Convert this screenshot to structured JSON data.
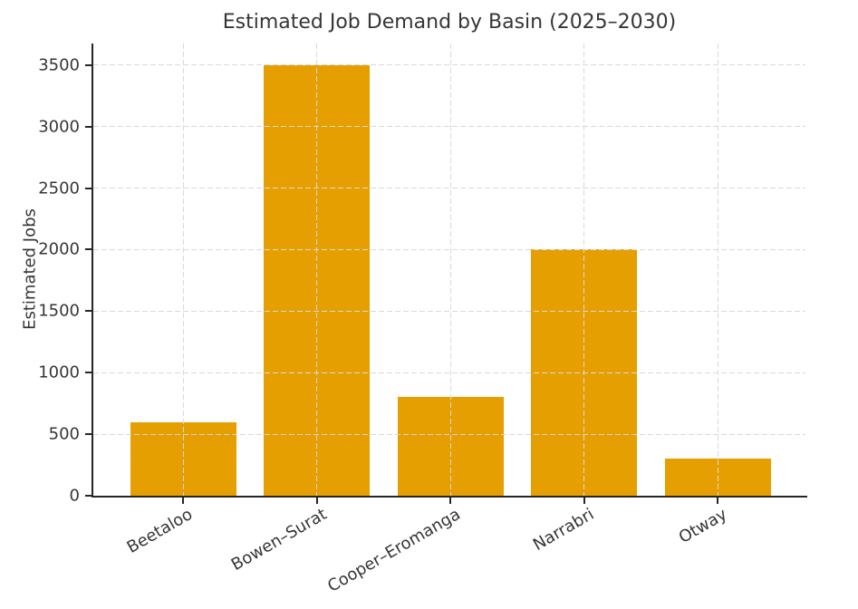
{
  "chart_data": {
    "type": "bar",
    "title": "Estimated Job Demand by Basin (2025–2030)",
    "xlabel": "",
    "ylabel": "Estimated Jobs",
    "categories": [
      "Beetaloo",
      "Bowen–Surat",
      "Cooper–Eromanga",
      "Narrabri",
      "Otway"
    ],
    "values": [
      600,
      3500,
      800,
      2000,
      300
    ],
    "yticks": [
      0,
      500,
      1000,
      1500,
      2000,
      2500,
      3000,
      3500
    ],
    "ylim": [
      0,
      3675
    ],
    "bar_color": "#E69F00",
    "grid": true,
    "grid_style": "dashed",
    "grid_color": "#d9d9d9",
    "spine_color": "#262626",
    "text_color": "#363636",
    "legend": null,
    "x_tick_rotation_deg": 30
  }
}
